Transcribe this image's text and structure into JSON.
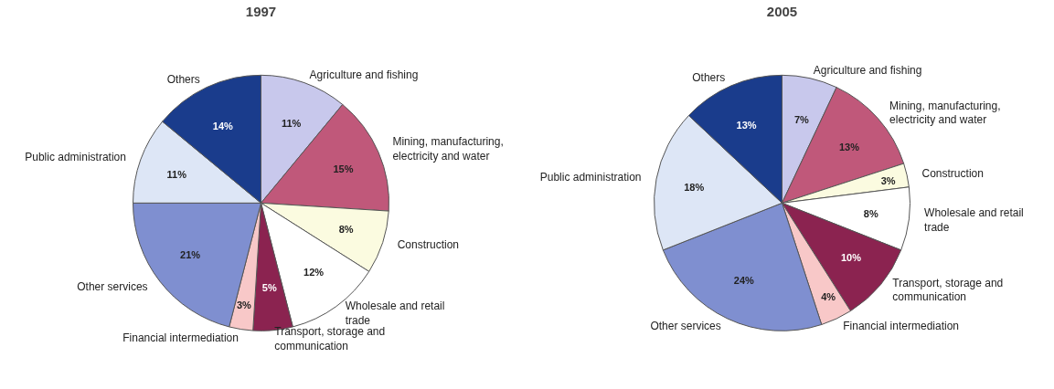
{
  "chart_data": [
    {
      "type": "pie",
      "title": "1997",
      "categories": [
        "Agriculture and fishing",
        "Mining, manufacturing, electricity and water",
        "Construction",
        "Wholesale and retail trade",
        "Transport, storage and communication",
        "Financial intermediation",
        "Other services",
        "Public administration",
        "Others"
      ],
      "values": [
        11,
        15,
        8,
        12,
        5,
        3,
        21,
        11,
        14
      ],
      "value_labels": [
        "11%",
        "15%",
        "8%",
        "12%",
        "5%",
        "3%",
        "21%",
        "11%",
        "14%"
      ],
      "colors": [
        "#c8c8ec",
        "#c0587a",
        "#fbfbe0",
        "#ffffff",
        "#8b2350",
        "#f8c8c8",
        "#7f8fd0",
        "#dde6f6",
        "#1a3c8c"
      ]
    },
    {
      "type": "pie",
      "title": "2005",
      "categories": [
        "Agriculture and fishing",
        "Mining, manufacturing, electricity and water",
        "Construction",
        "Wholesale and retail trade",
        "Transport, storage and communication",
        "Financial intermediation",
        "Other services",
        "Public administration",
        "Others"
      ],
      "values": [
        7,
        13,
        3,
        8,
        10,
        4,
        24,
        18,
        13
      ],
      "value_labels": [
        "7%",
        "13%",
        "3%",
        "8%",
        "10%",
        "4%",
        "24%",
        "18%",
        "13%"
      ],
      "colors": [
        "#c8c8ec",
        "#c0587a",
        "#fbfbe0",
        "#ffffff",
        "#8b2350",
        "#f8c8c8",
        "#7f8fd0",
        "#dde6f6",
        "#1a3c8c"
      ]
    }
  ]
}
